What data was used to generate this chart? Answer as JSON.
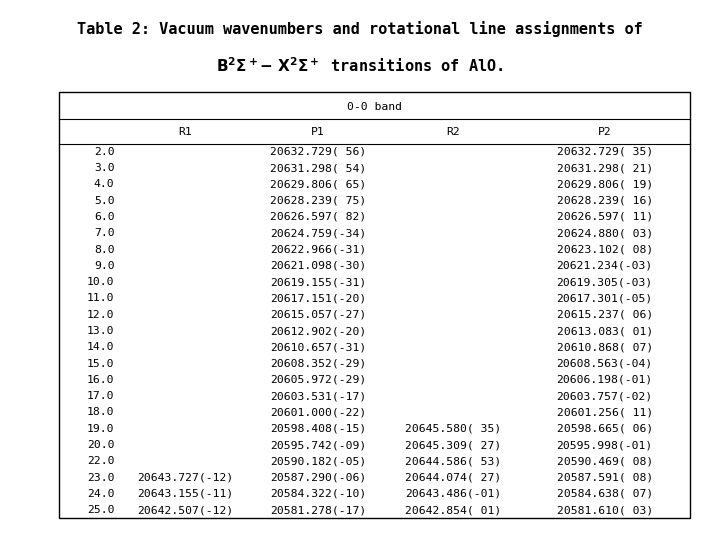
{
  "title_line1": "Table 2: Vacuum wavenumbers and rotational line assignments of",
  "title_line2_part1": "B",
  "title_line2_sup1": "2",
  "title_line2_part2": "Σ",
  "title_line2_sup2": "+",
  "title_line2_mid": "- X",
  "title_line2_sup3": "2",
  "title_line2_part3": "Σ",
  "title_line2_sup4": "+",
  "title_line2_end": " transitions of AlO.",
  "band_header": "0-0 band",
  "col_headers": [
    "R1",
    "P1",
    "R2",
    "P2"
  ],
  "rows": [
    [
      "2.0",
      "",
      "20632.729( 56)",
      "",
      "20632.729( 35)"
    ],
    [
      "3.0",
      "",
      "20631.298( 54)",
      "",
      "20631.298( 21)"
    ],
    [
      "4.0",
      "",
      "20629.806( 65)",
      "",
      "20629.806( 19)"
    ],
    [
      "5.0",
      "",
      "20628.239( 75)",
      "",
      "20628.239( 16)"
    ],
    [
      "6.0",
      "",
      "20626.597( 82)",
      "",
      "20626.597( 11)"
    ],
    [
      "7.0",
      "",
      "20624.759(-34)",
      "",
      "20624.880( 03)"
    ],
    [
      "8.0",
      "",
      "20622.966(-31)",
      "",
      "20623.102( 08)"
    ],
    [
      "9.0",
      "",
      "20621.098(-30)",
      "",
      "20621.234(-03)"
    ],
    [
      "10.0",
      "",
      "20619.155(-31)",
      "",
      "20619.305(-03)"
    ],
    [
      "11.0",
      "",
      "20617.151(-20)",
      "",
      "20617.301(-05)"
    ],
    [
      "12.0",
      "",
      "20615.057(-27)",
      "",
      "20615.237( 06)"
    ],
    [
      "13.0",
      "",
      "20612.902(-20)",
      "",
      "20613.083( 01)"
    ],
    [
      "14.0",
      "",
      "20610.657(-31)",
      "",
      "20610.868( 07)"
    ],
    [
      "15.0",
      "",
      "20608.352(-29)",
      "",
      "20608.563(-04)"
    ],
    [
      "16.0",
      "",
      "20605.972(-29)",
      "",
      "20606.198(-01)"
    ],
    [
      "17.0",
      "",
      "20603.531(-17)",
      "",
      "20603.757(-02)"
    ],
    [
      "18.0",
      "",
      "20601.000(-22)",
      "",
      "20601.256( 11)"
    ],
    [
      "19.0",
      "",
      "20598.408(-15)",
      "20645.580( 35)",
      "20598.665( 06)"
    ],
    [
      "20.0",
      "",
      "20595.742(-09)",
      "20645.309( 27)",
      "20595.998(-01)"
    ],
    [
      "22.0",
      "",
      "20590.182(-05)",
      "20644.586( 53)",
      "20590.469( 08)"
    ],
    [
      "23.0",
      "20643.727(-12)",
      "20587.290(-06)",
      "20644.074( 27)",
      "20587.591( 08)"
    ],
    [
      "24.0",
      "20643.155(-11)",
      "20584.322(-10)",
      "20643.486(-01)",
      "20584.638( 07)"
    ],
    [
      "25.0",
      "20642.507(-12)",
      "20581.278(-17)",
      "20642.854( 01)",
      "20581.610( 03)"
    ]
  ],
  "bg_color": "#ffffff",
  "border_color": "#000000",
  "title_fontsize": 11.0,
  "table_fontsize": 8.2
}
